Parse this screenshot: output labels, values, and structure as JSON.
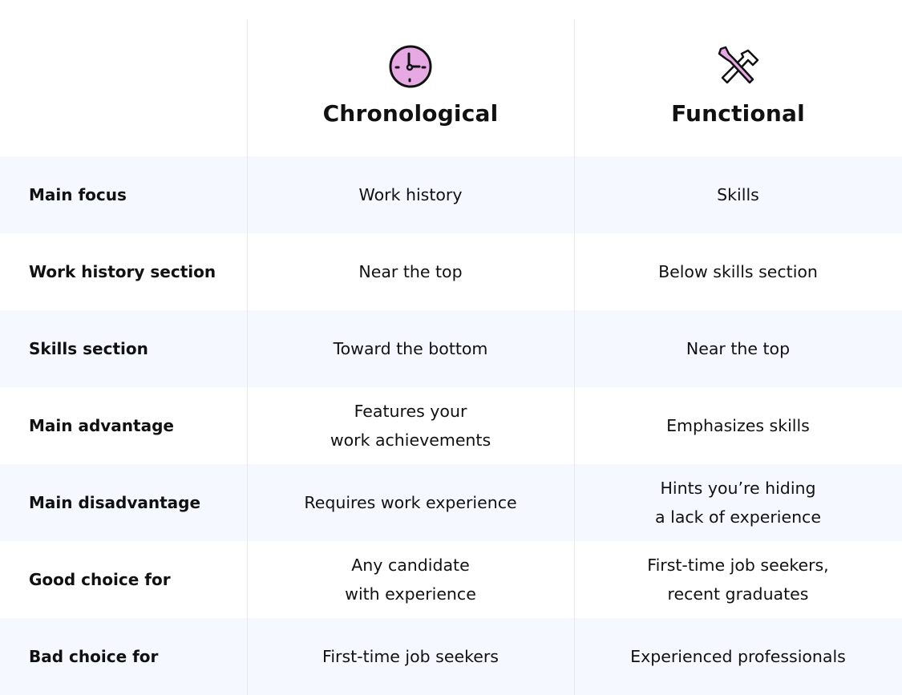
{
  "columns": [
    {
      "title": "Chronological",
      "icon": "clock-icon",
      "icon_color": "#e6a9e3"
    },
    {
      "title": "Functional",
      "icon": "tools-icon",
      "icon_color": "#e6a9e3"
    }
  ],
  "rows": [
    {
      "label": "Main focus",
      "chronological": "Work history",
      "functional": "Skills"
    },
    {
      "label": "Work history section",
      "chronological": "Near the top",
      "functional": "Below skills section"
    },
    {
      "label": "Skills section",
      "chronological": "Toward the bottom",
      "functional": "Near the top"
    },
    {
      "label": "Main advantage",
      "chronological": "Features your\nwork achievements",
      "functional": "Emphasizes skills"
    },
    {
      "label": "Main disadvantage",
      "chronological": "Requires work experience",
      "functional": "Hints you’re hiding\na lack of experience"
    },
    {
      "label": "Good choice for",
      "chronological": "Any candidate\nwith experience",
      "functional": "First-time job seekers,\nrecent graduates"
    },
    {
      "label": "Bad choice for",
      "chronological": "First-time job seekers",
      "functional": "Experienced professionals"
    }
  ]
}
